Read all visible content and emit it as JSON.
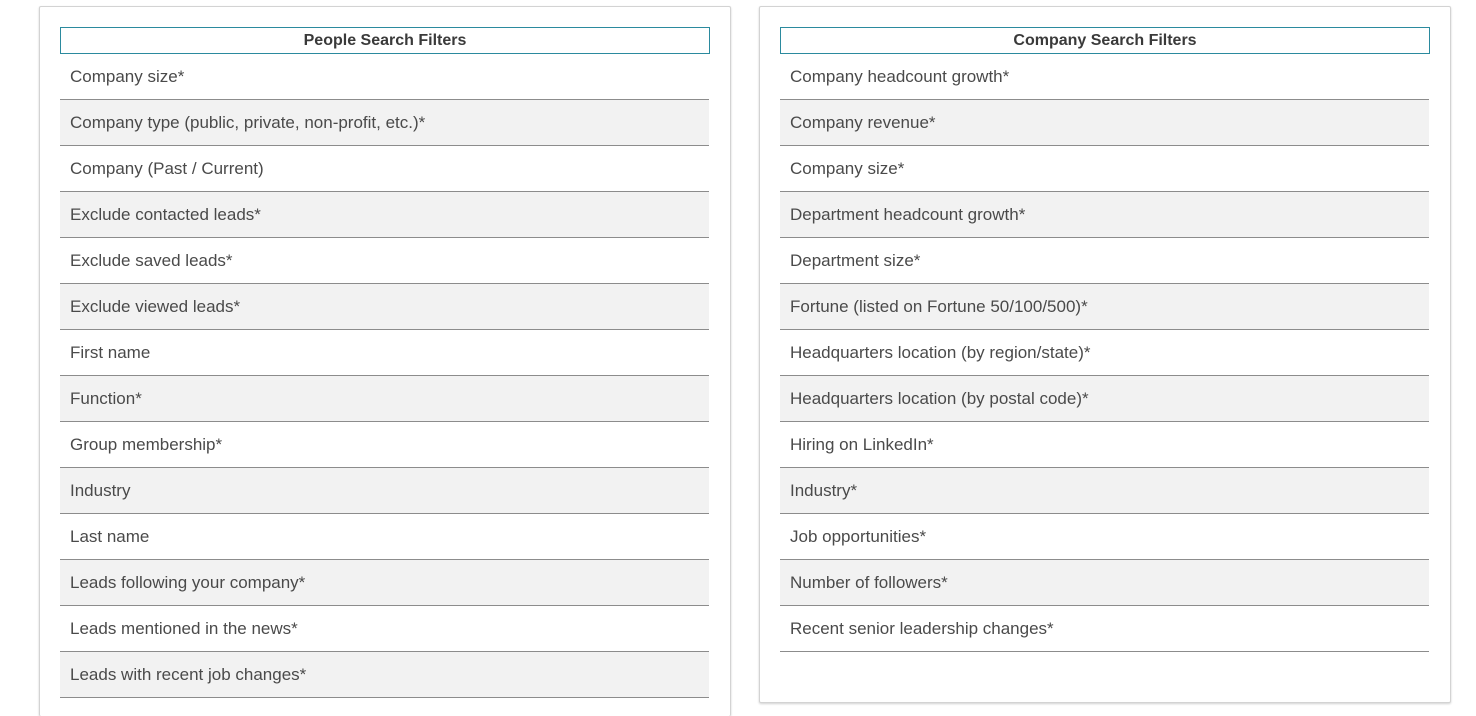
{
  "people_filters": {
    "title": "People Search Filters",
    "rows": [
      "Company size*",
      "Company type (public, private, non-profit, etc.)*",
      "Company (Past / Current)",
      "Exclude contacted leads*",
      "Exclude saved leads*",
      "Exclude viewed leads*",
      "First name",
      "Function*",
      "Group membership*",
      "Industry",
      "Last name",
      "Leads following your company*",
      "Leads mentioned in the news*",
      "Leads with recent job changes*"
    ]
  },
  "company_filters": {
    "title": "Company Search Filters",
    "rows": [
      "Company headcount growth*",
      "Company revenue*",
      "Company size*",
      "Department headcount growth*",
      "Department size*",
      "Fortune (listed on Fortune 50/100/500)*",
      "Headquarters location (by region/state)*",
      "Headquarters location (by postal code)*",
      "Hiring on LinkedIn*",
      "Industry*",
      "Job opportunities*",
      "Number of followers*",
      "Recent senior leadership changes*"
    ]
  },
  "colors": {
    "header_border": "#2b8a9e",
    "row_shade": "#f2f2f2",
    "row_divider": "#8c8c8c"
  }
}
